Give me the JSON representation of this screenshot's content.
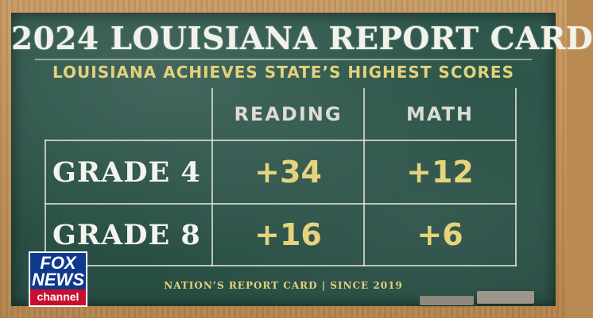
{
  "title": "2024 LOUISIANA REPORT CARD",
  "subtitle": "LOUISIANA ACHIEVES STATE’S HIGHEST SCORES",
  "columns": [
    "READING",
    "MATH"
  ],
  "rows": [
    {
      "label": "GRADE 4",
      "reading": "+34",
      "math": "+12"
    },
    {
      "label": "GRADE 8",
      "reading": "+16",
      "math": "+6"
    }
  ],
  "footer": "NATION’S REPORT CARD | SINCE 2019",
  "logo": {
    "line1": "FOX",
    "line2": "NEWS",
    "line3": "channel"
  },
  "colors": {
    "board": "#2f584d",
    "chalk_white": "#f3f2ea",
    "chalk_yellow": "#e3d27c",
    "frame": "#b98a52"
  }
}
